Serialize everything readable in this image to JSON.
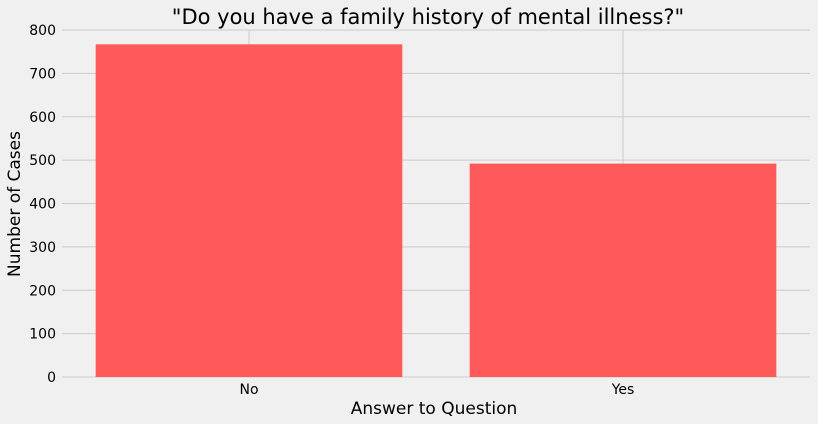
{
  "chart_data": {
    "type": "bar",
    "title": "\"Do you have a family history of mental illness?\"",
    "xlabel": "Answer to Question",
    "ylabel": "Number of Cases",
    "categories": [
      "No",
      "Yes"
    ],
    "values": [
      767,
      492
    ],
    "ylim": [
      0,
      800
    ],
    "yticks": [
      0,
      100,
      200,
      300,
      400,
      500,
      600,
      700,
      800
    ],
    "ytick_labels": [
      "0",
      "100",
      "200",
      "300",
      "400",
      "500",
      "600",
      "700",
      "800"
    ],
    "grid": true,
    "legend": "none",
    "bar_color": "#ff5a5a",
    "background_color": "#f0f0f0",
    "grid_color": "#cbcbcb"
  }
}
